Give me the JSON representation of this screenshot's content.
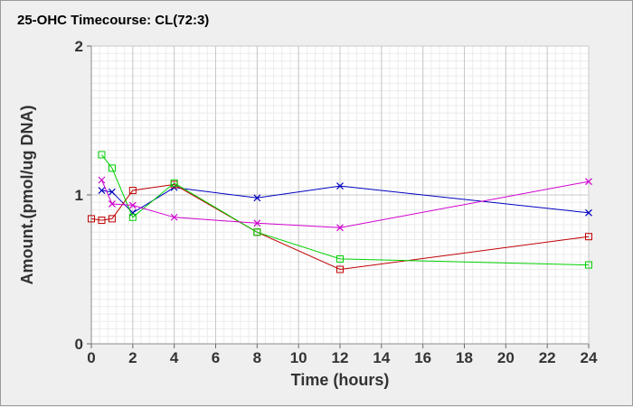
{
  "chart_data": {
    "type": "line",
    "title": "25-OHC Timecourse: CL(72:3)",
    "xlabel": "Time (hours)",
    "ylabel": "Amount.(pmol/ug DNA)",
    "xlim": [
      0,
      24
    ],
    "ylim": [
      0,
      2
    ],
    "xticks": [
      "0",
      "2",
      "4",
      "6",
      "8",
      "10",
      "12",
      "14",
      "16",
      "18",
      "20",
      "22",
      "24"
    ],
    "yticks": [
      "0",
      "1",
      "2"
    ],
    "grid": true,
    "legend": "none",
    "series": [
      {
        "color": "#0000c0",
        "marker": "x",
        "x": [
          0.5,
          1,
          2,
          4,
          8,
          12,
          24
        ],
        "y": [
          1.03,
          1.02,
          0.88,
          1.05,
          0.98,
          1.06,
          0.88
        ]
      },
      {
        "color": "#c00000",
        "marker": "square",
        "x": [
          0,
          0.5,
          1,
          2,
          4,
          8,
          12,
          24
        ],
        "y": [
          0.84,
          0.83,
          0.84,
          1.03,
          1.07,
          0.75,
          0.5,
          0.72
        ]
      },
      {
        "color": "#00d000",
        "marker": "square",
        "x": [
          0.5,
          1,
          2,
          4,
          8,
          12,
          24
        ],
        "y": [
          1.27,
          1.18,
          0.85,
          1.08,
          0.75,
          0.57,
          0.53
        ]
      },
      {
        "color": "#d000d0",
        "marker": "x",
        "x": [
          0.5,
          1,
          2,
          4,
          8,
          12,
          24
        ],
        "y": [
          1.1,
          0.94,
          0.93,
          0.85,
          0.81,
          0.78,
          1.09
        ]
      }
    ]
  }
}
